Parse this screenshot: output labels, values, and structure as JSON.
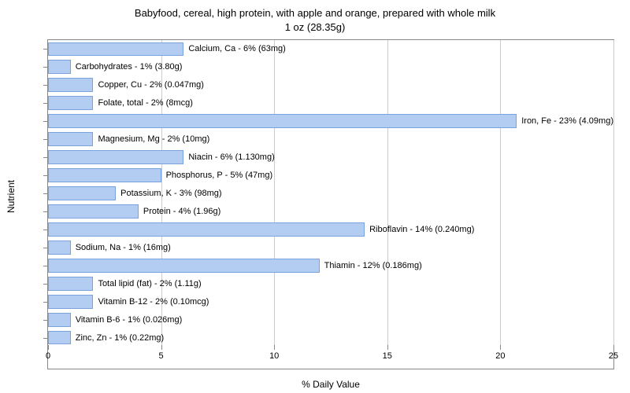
{
  "chart": {
    "type": "bar-horizontal",
    "title_line1": "Babyfood, cereal, high protein, with apple and orange, prepared with whole milk",
    "title_line2": "1 oz (28.35g)",
    "title_fontsize": 13,
    "xlabel": "% Daily Value",
    "ylabel": "Nutrient",
    "label_fontsize": 12,
    "background_color": "#ffffff",
    "grid_color": "#cccccc",
    "bar_color": "#b3cdf2",
    "bar_border_color": "#7aa3de",
    "text_color": "#000000",
    "border_color": "#888888",
    "xlim": [
      0,
      25
    ],
    "xticks": [
      0,
      5,
      10,
      15,
      20,
      25
    ],
    "bar_label_fontsize": 11,
    "items": [
      {
        "label": "Calcium, Ca - 6% (63mg)",
        "value": 6
      },
      {
        "label": "Carbohydrates - 1% (3.80g)",
        "value": 1
      },
      {
        "label": "Copper, Cu - 2% (0.047mg)",
        "value": 2
      },
      {
        "label": "Folate, total - 2% (8mcg)",
        "value": 2
      },
      {
        "label": "Iron, Fe - 23% (4.09mg)",
        "value": 23
      },
      {
        "label": "Magnesium, Mg - 2% (10mg)",
        "value": 2
      },
      {
        "label": "Niacin - 6% (1.130mg)",
        "value": 6
      },
      {
        "label": "Phosphorus, P - 5% (47mg)",
        "value": 5
      },
      {
        "label": "Potassium, K - 3% (98mg)",
        "value": 3
      },
      {
        "label": "Protein - 4% (1.96g)",
        "value": 4
      },
      {
        "label": "Riboflavin - 14% (0.240mg)",
        "value": 14
      },
      {
        "label": "Sodium, Na - 1% (16mg)",
        "value": 1
      },
      {
        "label": "Thiamin - 12% (0.186mg)",
        "value": 12
      },
      {
        "label": "Total lipid (fat) - 2% (1.11g)",
        "value": 2
      },
      {
        "label": "Vitamin B-12 - 2% (0.10mcg)",
        "value": 2
      },
      {
        "label": "Vitamin B-6 - 1% (0.026mg)",
        "value": 1
      },
      {
        "label": "Zinc, Zn - 1% (0.22mg)",
        "value": 1
      }
    ]
  }
}
